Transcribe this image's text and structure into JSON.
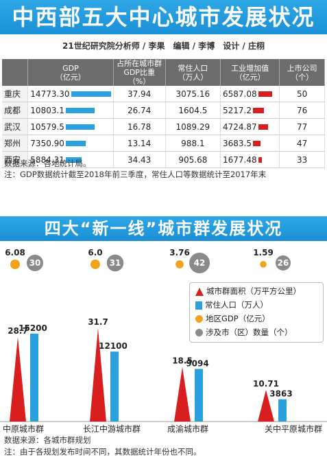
{
  "top": {
    "title": "中西部五大中心城市发展状况",
    "credits": "21世纪研究院分析师 / 李果　编辑 / 李博　设计 / 庄栩",
    "headers": [
      "",
      "GDP\n（亿元）",
      "占所在城市群\nGDP比重（%）",
      "常住人口\n（万人）",
      "工业增加值\n（亿元）",
      "上市公司（个）"
    ],
    "rows": [
      {
        "city": "重庆",
        "gdp": "14773.30",
        "share": "37.94",
        "pop": "3075.16",
        "ind": "6587.08",
        "listed": "50"
      },
      {
        "city": "成都",
        "gdp": "10803.1",
        "share": "26.74",
        "pop": "1604.5",
        "ind": "5217.2",
        "listed": "76"
      },
      {
        "city": "武汉",
        "gdp": "10579.5",
        "share": "16.78",
        "pop": "1089.29",
        "ind": "4724.87",
        "listed": "77"
      },
      {
        "city": "郑州",
        "gdp": "7350.90",
        "share": "13.14",
        "pop": "988.1",
        "ind": "3683.5",
        "listed": "47"
      },
      {
        "city": "西安",
        "gdp": "5884.31",
        "share": "34.43",
        "pop": "905.68",
        "ind": "1677.48",
        "listed": "33"
      }
    ],
    "source": "数据来源：各地统计局。",
    "note": "注：GDP数据统计截至2018年前三季度，常住人口等数据统计至2017年末"
  },
  "bottom": {
    "title": "四大“新一线”城市群发展状况",
    "source": "数据来源：各城市群规划",
    "note": "注：由于各规划发布时间不同，其数据统计年份也不同。"
  },
  "chart_data": {
    "type": "bar",
    "categories": [
      "中原城市群",
      "长江中游城市群",
      "成渝城市群",
      "关中平原城市群"
    ],
    "series": [
      {
        "name": "城市群面积（万平方公里）",
        "values": [
          28.7,
          31.7,
          18.5,
          10.71
        ],
        "labels": [
          "28.7",
          "31.7",
          "18.5",
          "10.71"
        ]
      },
      {
        "name": "常住人口（万人）",
        "values": [
          15200,
          12100,
          9094,
          3863
        ],
        "labels": [
          "15200",
          "12100",
          "9094",
          "3863"
        ]
      },
      {
        "name": "地区GDP（亿元）",
        "values": [
          6.08,
          6.0,
          3.76,
          1.59
        ],
        "labels": [
          "6.08",
          "6.0",
          "3.76",
          "1.59"
        ]
      },
      {
        "name": "涉及市（区）数量（个）",
        "values": [
          30,
          31,
          42,
          26
        ],
        "labels": [
          "30",
          "31",
          "42",
          "26"
        ]
      }
    ],
    "colors": {
      "area": "#d81e1e",
      "population": "#2aa0df",
      "gdp": "#f0a21c",
      "count": "#8a8a8a"
    }
  },
  "colors": {
    "banner": "#1f97dc",
    "gdp_bar": "#2aa0df",
    "ind_bar": "#d81e1e",
    "header": "#6d6d6d"
  }
}
